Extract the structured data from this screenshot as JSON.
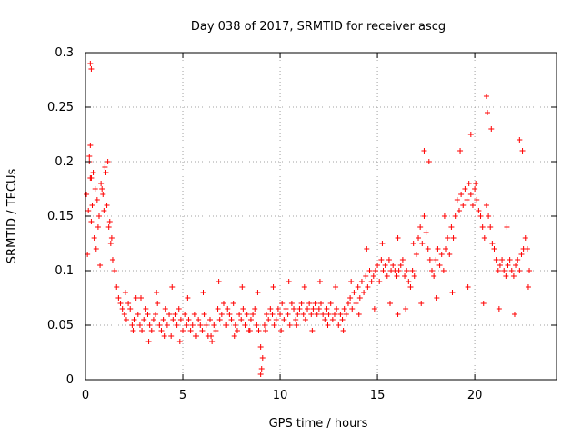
{
  "chart_data": {
    "type": "scatter",
    "title": "Day 038 of 2017, SRMTID for receiver ascg",
    "xlabel": "GPS time / hours",
    "ylabel": "SRMTID / TECUs",
    "xlim": [
      0,
      24.2
    ],
    "ylim": [
      0,
      0.3
    ],
    "xticks": [
      0,
      5,
      10,
      15,
      20
    ],
    "yticks": [
      0,
      0.05,
      0.1,
      0.15,
      0.2,
      0.25,
      0.3
    ],
    "ytick_labels": [
      "0",
      "0.05",
      "0.1",
      "0.15",
      "0.2",
      "0.25",
      "0.3"
    ],
    "grid": true,
    "marker": "+",
    "color": "#ff0000",
    "series": [
      {
        "name": "SRMTID",
        "x": [
          0.05,
          0.1,
          0.15,
          0.2,
          0.25,
          0.3,
          0.35,
          0.4,
          0.5,
          0.6,
          0.7,
          0.8,
          0.9,
          1.0,
          1.1,
          1.2,
          1.3,
          1.4,
          0.2,
          0.25,
          0.3,
          0.45,
          0.55,
          0.65,
          0.75,
          0.85,
          0.95,
          1.05,
          1.15,
          1.25,
          1.35,
          1.5,
          1.6,
          1.7,
          1.8,
          1.9,
          2.0,
          2.1,
          2.2,
          2.3,
          2.4,
          2.5,
          2.6,
          2.7,
          2.8,
          2.9,
          3.0,
          3.1,
          3.2,
          3.3,
          3.4,
          3.5,
          3.6,
          3.7,
          3.8,
          3.9,
          4.0,
          4.1,
          4.2,
          4.3,
          4.4,
          4.5,
          4.6,
          4.7,
          4.8,
          4.9,
          5.0,
          5.1,
          5.2,
          5.3,
          5.4,
          5.5,
          5.6,
          5.7,
          5.8,
          5.9,
          6.0,
          6.1,
          6.2,
          6.3,
          6.4,
          6.5,
          6.6,
          6.7,
          6.8,
          6.9,
          7.0,
          7.1,
          7.2,
          7.3,
          7.4,
          7.5,
          7.6,
          7.7,
          7.8,
          7.9,
          8.0,
          8.1,
          8.2,
          8.3,
          8.4,
          8.5,
          8.6,
          8.7,
          8.8,
          8.9,
          9.0,
          9.1,
          9.2,
          9.3,
          9.4,
          9.5,
          9.6,
          9.7,
          9.8,
          9.9,
          10.0,
          10.1,
          10.2,
          10.3,
          10.4,
          10.5,
          10.6,
          10.7,
          10.8,
          10.9,
          11.0,
          11.1,
          11.2,
          11.3,
          11.4,
          11.5,
          11.6,
          11.7,
          11.8,
          11.9,
          12.0,
          12.1,
          12.2,
          12.3,
          12.4,
          12.5,
          12.6,
          12.7,
          12.8,
          12.9,
          13.0,
          13.1,
          13.2,
          13.3,
          13.4,
          13.5,
          13.6,
          13.7,
          13.8,
          13.9,
          14.0,
          14.1,
          14.2,
          14.3,
          14.4,
          14.5,
          14.6,
          14.7,
          14.8,
          14.9,
          15.0,
          15.1,
          15.2,
          15.3,
          15.4,
          15.5,
          15.6,
          15.7,
          15.8,
          15.9,
          16.0,
          16.1,
          16.2,
          16.3,
          16.4,
          16.5,
          16.6,
          16.7,
          16.8,
          16.9,
          17.0,
          17.1,
          17.2,
          17.3,
          17.4,
          17.5,
          17.6,
          17.7,
          17.8,
          17.9,
          18.0,
          18.1,
          18.2,
          18.3,
          18.4,
          18.5,
          18.6,
          18.7,
          18.8,
          18.9,
          19.0,
          19.1,
          19.2,
          19.3,
          19.4,
          19.5,
          19.6,
          19.7,
          19.8,
          19.9,
          20.0,
          20.1,
          20.2,
          20.3,
          20.4,
          20.5,
          20.6,
          20.7,
          20.8,
          20.9,
          21.0,
          21.1,
          21.2,
          21.3,
          21.4,
          21.5,
          21.6,
          21.7,
          21.8,
          21.9,
          22.0,
          22.1,
          22.2,
          22.3,
          22.4,
          22.5,
          22.6,
          22.7,
          22.8,
          2.05,
          2.45,
          2.85,
          3.25,
          3.65,
          4.05,
          4.45,
          4.85,
          5.25,
          5.65,
          6.05,
          6.45,
          6.85,
          7.25,
          7.65,
          8.05,
          8.45,
          8.85,
          9.25,
          9.65,
          10.05,
          10.45,
          10.85,
          11.25,
          11.65,
          12.05,
          12.45,
          12.85,
          13.25,
          13.65,
          14.05,
          14.45,
          14.85,
          15.25,
          15.65,
          16.05,
          16.45,
          16.85,
          17.25,
          17.65,
          18.05,
          18.45,
          18.85,
          19.25,
          19.65,
          20.05,
          20.45,
          20.85,
          21.25,
          21.65,
          22.05,
          22.45,
          22.75,
          0.25,
          0.3,
          20.6,
          20.65,
          9.0,
          9.05,
          17.4,
          16.05,
          19.8,
          22.3
        ],
        "y": [
          0.17,
          0.115,
          0.155,
          0.2,
          0.185,
          0.145,
          0.16,
          0.19,
          0.175,
          0.165,
          0.15,
          0.18,
          0.17,
          0.195,
          0.16,
          0.14,
          0.125,
          0.11,
          0.205,
          0.215,
          0.185,
          0.13,
          0.12,
          0.14,
          0.105,
          0.175,
          0.155,
          0.19,
          0.2,
          0.145,
          0.13,
          0.1,
          0.085,
          0.075,
          0.07,
          0.065,
          0.06,
          0.055,
          0.07,
          0.065,
          0.05,
          0.055,
          0.075,
          0.06,
          0.05,
          0.045,
          0.055,
          0.065,
          0.06,
          0.05,
          0.045,
          0.055,
          0.06,
          0.07,
          0.05,
          0.045,
          0.055,
          0.065,
          0.05,
          0.06,
          0.04,
          0.055,
          0.06,
          0.05,
          0.065,
          0.055,
          0.045,
          0.06,
          0.05,
          0.055,
          0.045,
          0.05,
          0.06,
          0.04,
          0.055,
          0.05,
          0.045,
          0.06,
          0.05,
          0.04,
          0.055,
          0.035,
          0.05,
          0.045,
          0.065,
          0.055,
          0.06,
          0.07,
          0.05,
          0.065,
          0.06,
          0.055,
          0.07,
          0.05,
          0.045,
          0.06,
          0.055,
          0.065,
          0.05,
          0.06,
          0.045,
          0.055,
          0.06,
          0.065,
          0.05,
          0.045,
          0.03,
          0.02,
          0.05,
          0.06,
          0.055,
          0.065,
          0.06,
          0.05,
          0.055,
          0.065,
          0.06,
          0.07,
          0.055,
          0.065,
          0.06,
          0.05,
          0.07,
          0.065,
          0.055,
          0.06,
          0.065,
          0.07,
          0.06,
          0.055,
          0.065,
          0.07,
          0.06,
          0.065,
          0.07,
          0.06,
          0.065,
          0.07,
          0.06,
          0.055,
          0.065,
          0.06,
          0.07,
          0.055,
          0.06,
          0.065,
          0.05,
          0.06,
          0.055,
          0.065,
          0.06,
          0.07,
          0.075,
          0.065,
          0.08,
          0.07,
          0.085,
          0.075,
          0.09,
          0.08,
          0.095,
          0.085,
          0.1,
          0.09,
          0.095,
          0.1,
          0.105,
          0.09,
          0.11,
          0.1,
          0.105,
          0.095,
          0.11,
          0.1,
          0.105,
          0.1,
          0.095,
          0.1,
          0.105,
          0.11,
          0.095,
          0.1,
          0.09,
          0.085,
          0.1,
          0.095,
          0.115,
          0.13,
          0.14,
          0.125,
          0.15,
          0.135,
          0.12,
          0.11,
          0.1,
          0.095,
          0.11,
          0.12,
          0.105,
          0.115,
          0.1,
          0.12,
          0.13,
          0.115,
          0.14,
          0.13,
          0.15,
          0.165,
          0.155,
          0.17,
          0.16,
          0.175,
          0.165,
          0.18,
          0.17,
          0.16,
          0.175,
          0.165,
          0.155,
          0.15,
          0.14,
          0.13,
          0.16,
          0.15,
          0.14,
          0.125,
          0.12,
          0.11,
          0.1,
          0.105,
          0.11,
          0.1,
          0.095,
          0.105,
          0.11,
          0.1,
          0.095,
          0.105,
          0.11,
          0.1,
          0.115,
          0.12,
          0.13,
          0.12,
          0.1,
          0.08,
          0.045,
          0.075,
          0.035,
          0.08,
          0.04,
          0.085,
          0.035,
          0.075,
          0.04,
          0.08,
          0.04,
          0.09,
          0.05,
          0.04,
          0.085,
          0.045,
          0.08,
          0.045,
          0.085,
          0.045,
          0.09,
          0.05,
          0.085,
          0.045,
          0.09,
          0.05,
          0.085,
          0.045,
          0.09,
          0.06,
          0.12,
          0.065,
          0.125,
          0.07,
          0.13,
          0.065,
          0.125,
          0.07,
          0.2,
          0.075,
          0.15,
          0.08,
          0.21,
          0.085,
          0.18,
          0.07,
          0.23,
          0.065,
          0.14,
          0.06,
          0.21,
          0.085,
          0.29,
          0.285,
          0.26,
          0.245,
          0.005,
          0.01,
          0.21,
          0.06,
          0.225,
          0.22
        ]
      }
    ]
  }
}
